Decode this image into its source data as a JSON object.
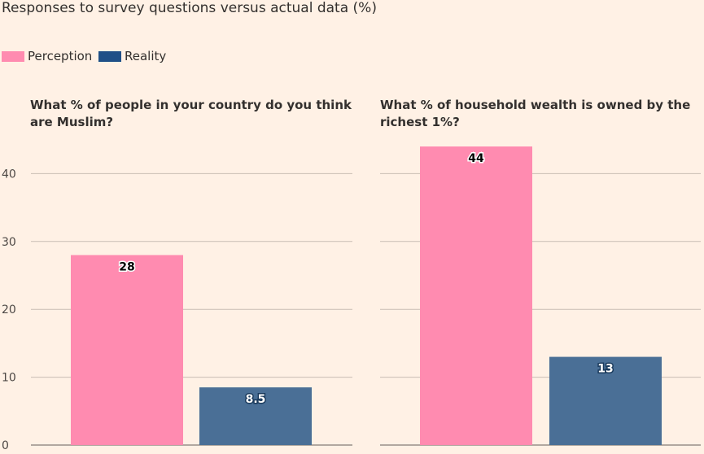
{
  "title": "Responses to survey questions versus actual data (%)",
  "legend": [
    {
      "label": "Perception",
      "color": "#ff8bb0"
    },
    {
      "label": "Reality",
      "color": "#1f5087"
    }
  ],
  "chart_data": [
    {
      "type": "bar",
      "title": "What % of people in your country do you think are Muslim?",
      "categories": [
        "Perception",
        "Reality"
      ],
      "values": [
        28,
        8.5
      ],
      "value_labels": [
        "28",
        "8.5"
      ],
      "colors": [
        "#ff8bb0",
        "#4a6f96"
      ],
      "ylim": [
        0,
        44
      ],
      "yticks": [
        0,
        10,
        20,
        30,
        40
      ],
      "grid": true,
      "legend_position": "top-left"
    },
    {
      "type": "bar",
      "title": "What % of household wealth is owned by the richest 1%?",
      "categories": [
        "Perception",
        "Reality"
      ],
      "values": [
        44,
        13
      ],
      "value_labels": [
        "44",
        "13"
      ],
      "colors": [
        "#ff8bb0",
        "#4a6f96"
      ],
      "ylim": [
        0,
        44
      ],
      "yticks": [
        0,
        10,
        20,
        30,
        40
      ],
      "grid": true,
      "legend_position": "top-left"
    }
  ]
}
